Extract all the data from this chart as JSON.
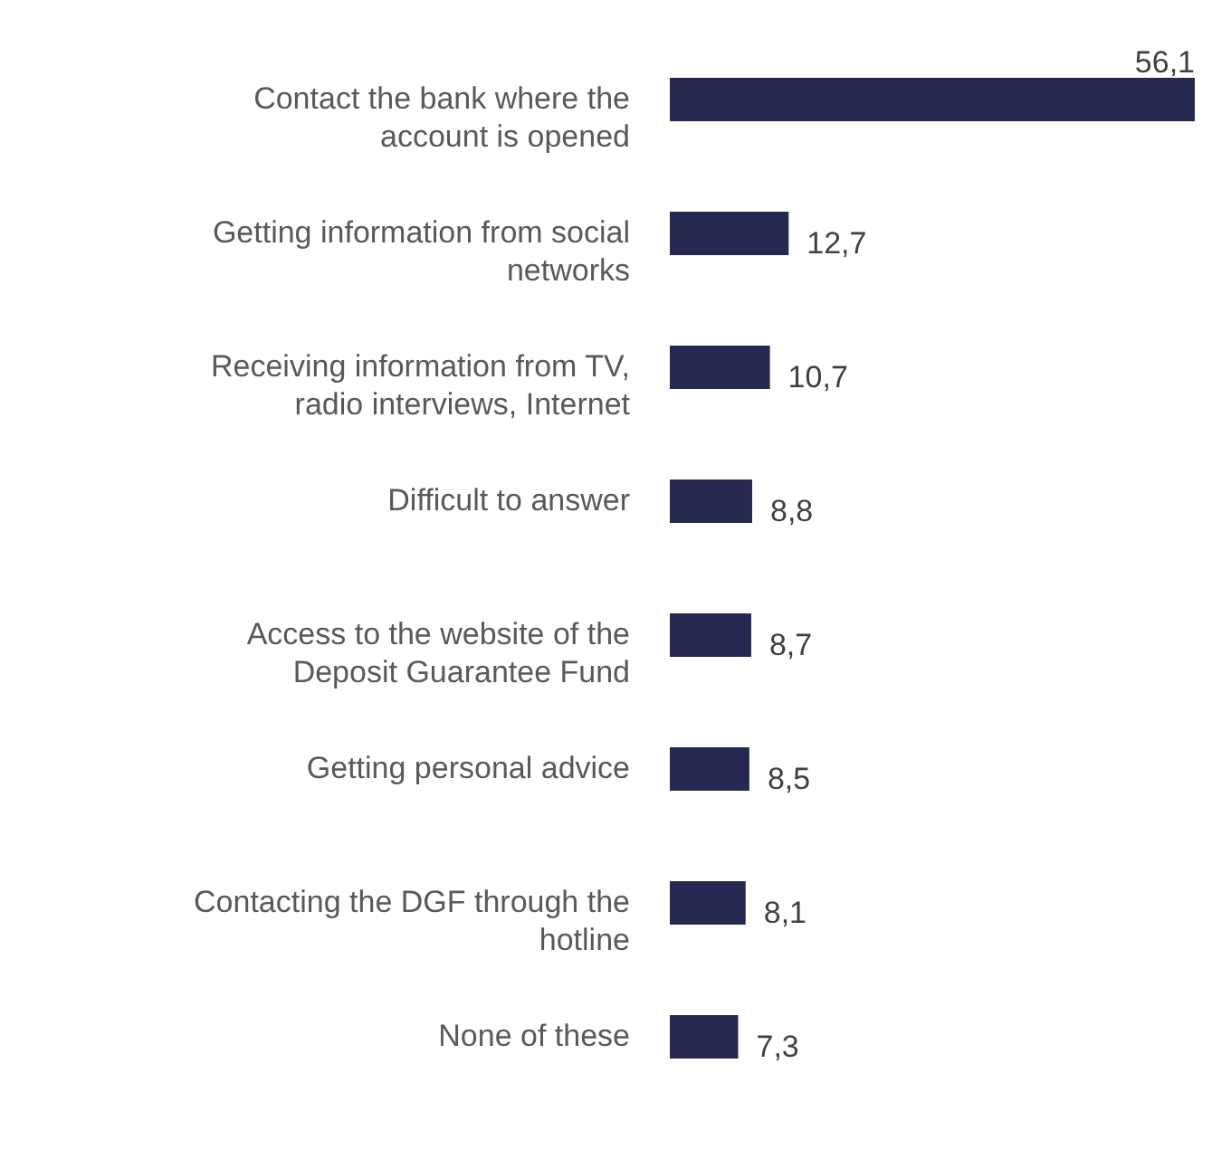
{
  "chart_data": {
    "type": "bar",
    "orientation": "horizontal",
    "categories": [
      "Contact the bank where the account is opened",
      "Getting information from social networks",
      "Receiving information from TV, radio interviews, Internet",
      "Difficult to answer",
      "Access to the website of the Deposit Guarantee Fund",
      "Getting personal advice",
      "Contacting the DGF through the hotline",
      "None of these"
    ],
    "values": [
      56.1,
      12.7,
      10.7,
      8.8,
      8.7,
      8.5,
      8.1,
      7.3
    ],
    "value_labels": [
      "56,1",
      "12,7",
      "10,7",
      "8,8",
      "8,7",
      "8,5",
      "8,1",
      "7,3"
    ],
    "color": "#252850"
  }
}
